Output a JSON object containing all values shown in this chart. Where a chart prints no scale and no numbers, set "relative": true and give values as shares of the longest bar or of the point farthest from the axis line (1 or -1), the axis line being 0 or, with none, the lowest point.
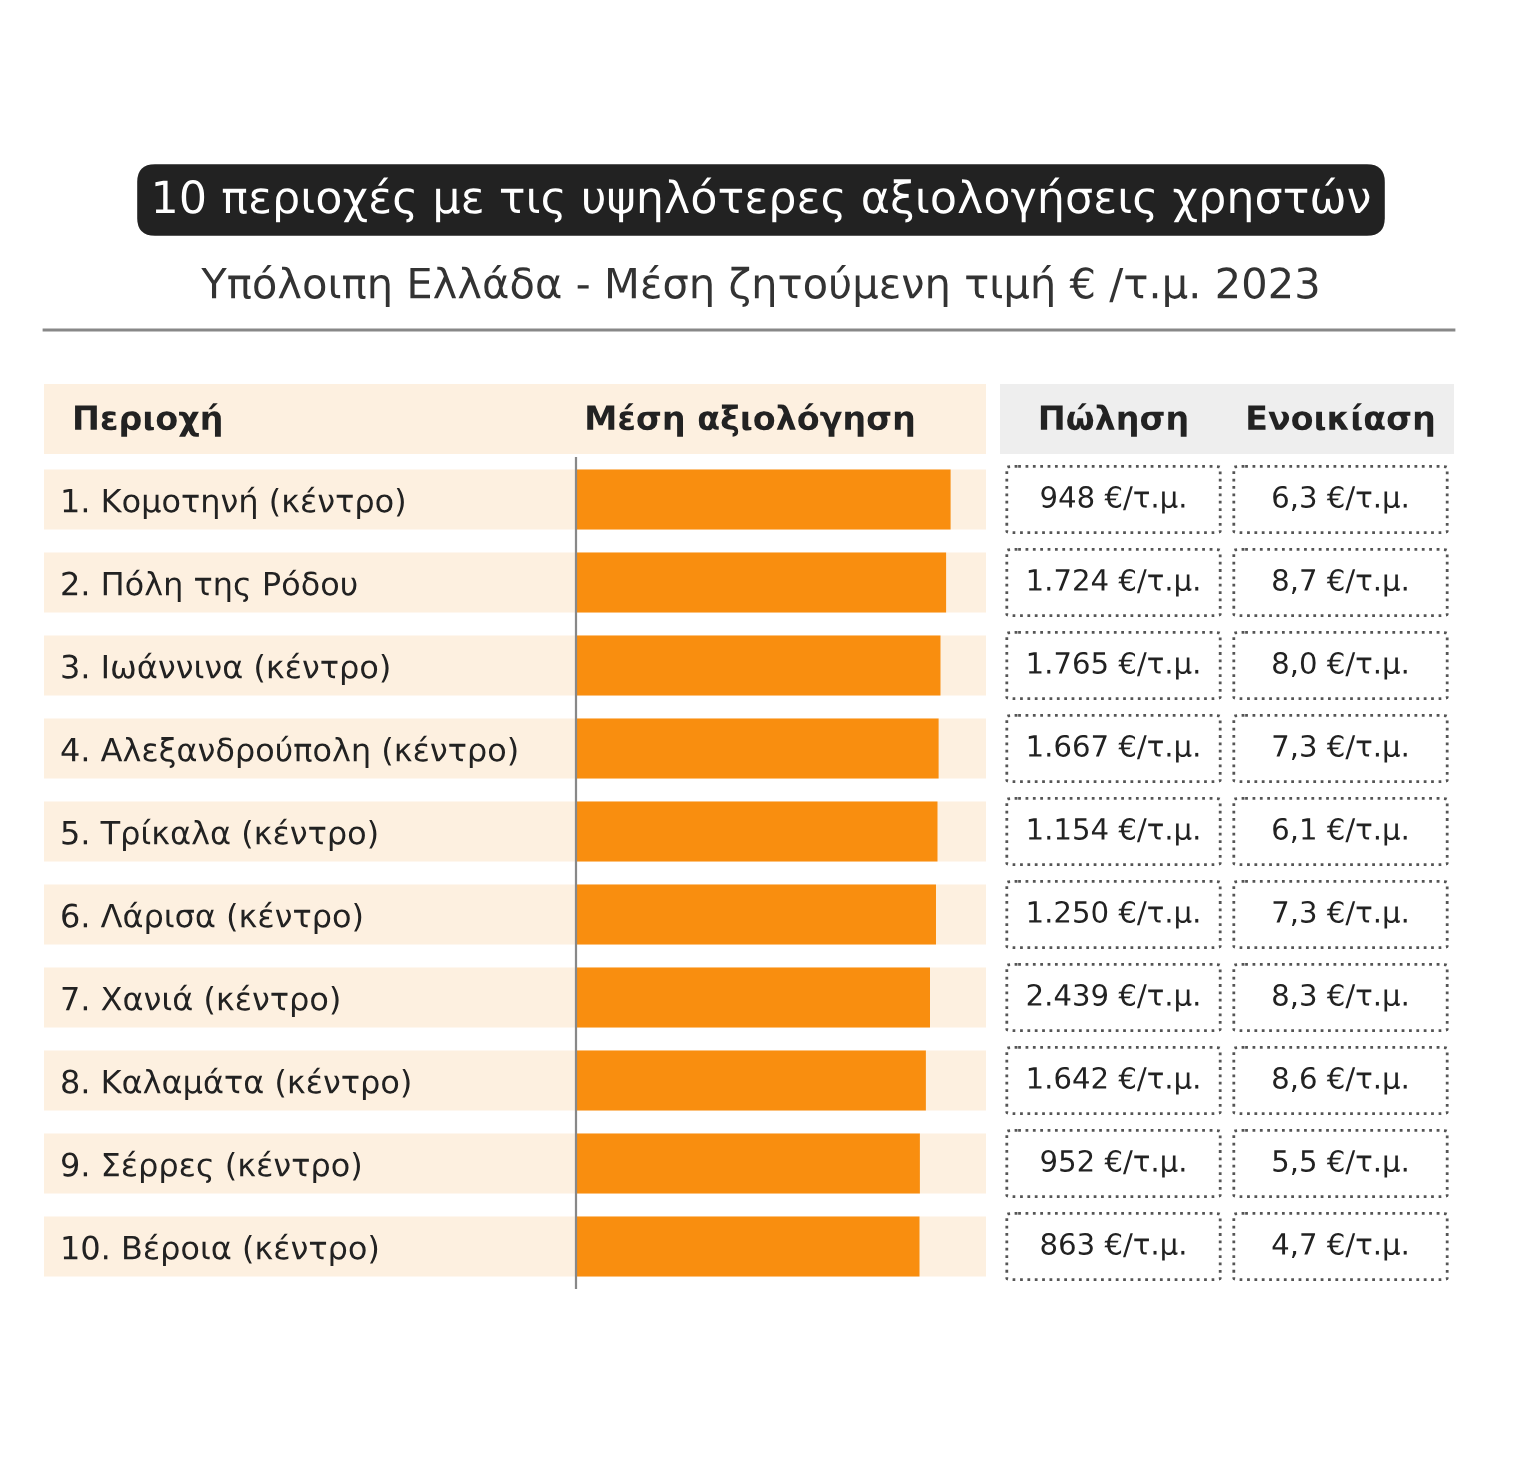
{
  "chart_data": [
    {
      "type": "bar",
      "orientation": "horizontal",
      "relative": true,
      "title": "10 περιοχές με τις υψηλότερες αξιολογήσεις χρηστών",
      "subtitle": "Υπόλοιπη Ελλάδα - Μέση ζητούμενη τιμή € /τ.μ. 2023",
      "ylabel": "Περιοχή",
      "xlabel": "Μέση αξιολόγηση",
      "color": "#f98e0f",
      "categories": [
        "1. Κομοτηνή (κέντρο)",
        "2. Πόλη της Ρόδου",
        "3. Ιωάννινα (κέντρο)",
        "4. Αλεξανδρούπολη (κέντρο)",
        "5. Τρίκαλα (κέντρο)",
        "6. Λάρισα (κέντρο)",
        "7. Χανιά (κέντρο)",
        "8. Καλαμάτα (κέντρο)",
        "9. Σέρρες (κέντρο)",
        "10. Βέροια (κέντρο)"
      ],
      "values": [
        1,
        0.988,
        0.973,
        0.968,
        0.965,
        0.961,
        0.945,
        0.934,
        0.918,
        0.917
      ]
    },
    {
      "type": "other",
      "categories": [
        "Πώληση",
        "Ενοικίαση"
      ],
      "cell_labels": [
        [
          "948 €/τ.μ.",
          "6,3 €/τ.μ."
        ],
        [
          "1.724 €/τ.μ.",
          "8,7 €/τ.μ."
        ],
        [
          "1.765 €/τ.μ.",
          "8,0 €/τ.μ."
        ],
        [
          "1.667 €/τ.μ.",
          "7,3 €/τ.μ."
        ],
        [
          "1.154 €/τ.μ.",
          "6,1 €/τ.μ."
        ],
        [
          "1.250 €/τ.μ.",
          "7,3 €/τ.μ."
        ],
        [
          "2.439 €/τ.μ.",
          "8,3 €/τ.μ."
        ],
        [
          "1.642 €/τ.μ.",
          "8,6 €/τ.μ."
        ],
        [
          "952 €/τ.μ.",
          "5,5 €/τ.μ."
        ],
        [
          "863 €/τ.μ.",
          "4,7 €/τ.μ."
        ]
      ]
    }
  ]
}
